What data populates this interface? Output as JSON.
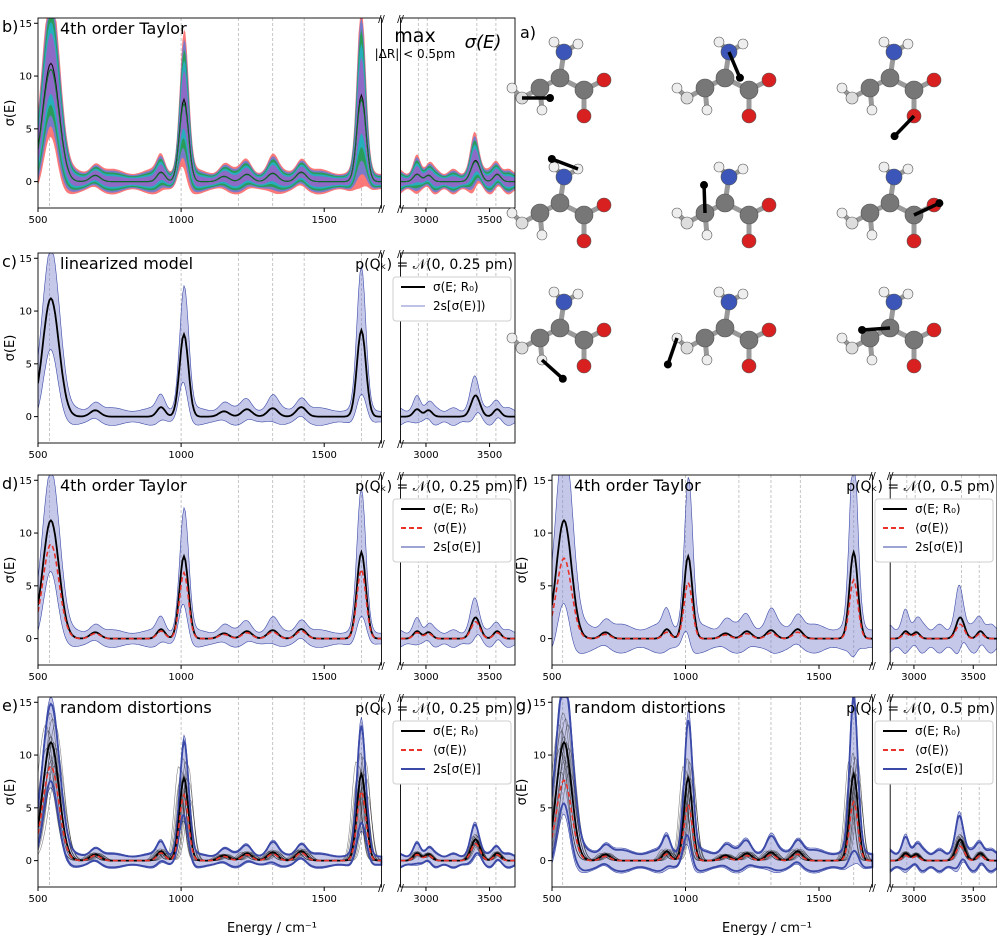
{
  "figure": {
    "xlabel": "Energy / cm⁻¹",
    "ylabel": "σ(E)"
  },
  "chart_data": [
    {
      "id": "b",
      "label": "b)",
      "type": "area",
      "title": "4th order Taylor",
      "annotation": {
        "main": "max",
        "sub": "|ΔR| < 0.5pm",
        "rhs": "σ(E)"
      },
      "x_left": [
        500,
        1700
      ],
      "x_right": [
        2800,
        3700
      ],
      "ylim": [
        -2.5,
        15.5
      ],
      "xticks": [
        500,
        1000,
        1500,
        3000,
        3500
      ],
      "yticks": [
        0,
        5,
        10,
        15
      ],
      "gridlines": [
        540,
        1000,
        1200,
        1320,
        1430,
        1630,
        2940,
        3010,
        3400,
        3550
      ],
      "bands": [
        {
          "center": 540,
          "height": 14.5,
          "width": 60
        },
        {
          "center": 1010,
          "height": 9.5,
          "width": 40
        },
        {
          "center": 1630,
          "height": 10.5,
          "width": 40
        },
        {
          "center": 3390,
          "height": 4.0,
          "width": 100
        }
      ],
      "colors": [
        "#fb6a6a",
        "#6a7bd1",
        "#20a050",
        "#26b0c8",
        "#9a63c8"
      ]
    },
    {
      "id": "c",
      "label": "c)",
      "type": "line",
      "title": "linearized model",
      "dist": "p(Qₖ) = 𝒩(0, 0.25 pm)",
      "x_left": [
        500,
        1700
      ],
      "x_right": [
        2800,
        3700
      ],
      "ylim": [
        -2.5,
        15.5
      ],
      "xticks": [
        500,
        1000,
        1500,
        3000,
        3500
      ],
      "yticks": [
        0,
        5,
        10,
        15
      ],
      "legend": [
        "σ(E; R₀)",
        "2s[σ(E)])"
      ],
      "band_scale": 1.35
    },
    {
      "id": "d",
      "label": "d)",
      "type": "line",
      "title": "4th order Taylor",
      "dist": "p(Qₖ) = 𝒩(0, 0.25 pm)",
      "x_left": [
        500,
        1700
      ],
      "x_right": [
        2800,
        3700
      ],
      "ylim": [
        -2.5,
        15.5
      ],
      "xticks": [
        500,
        1000,
        1500,
        3000,
        3500
      ],
      "yticks": [
        0,
        5,
        10,
        15
      ],
      "legend": [
        "σ(E; R₀)",
        "⟨σ(E)⟩",
        "2s[σ(E)]"
      ],
      "band_scale": 1.35
    },
    {
      "id": "f",
      "label": "f)",
      "type": "line",
      "title": "4th order Taylor",
      "dist": "p(Qₖ) = 𝒩(0, 0.5 pm)",
      "x_left": [
        500,
        1700
      ],
      "x_right": [
        2800,
        3700
      ],
      "ylim": [
        -2.5,
        15.5
      ],
      "xticks": [
        500,
        1000,
        1500,
        3000,
        3500
      ],
      "yticks": [
        0,
        5,
        10,
        15
      ],
      "legend": [
        "σ(E; R₀)",
        "⟨σ(E)⟩",
        "2s[σ(E)]"
      ],
      "band_scale": 2.2
    },
    {
      "id": "e",
      "label": "e)",
      "type": "line",
      "title": "random distortions",
      "dist": "p(Qₖ) = 𝒩(0, 0.25 pm)",
      "x_left": [
        500,
        1700
      ],
      "x_right": [
        2800,
        3700
      ],
      "ylim": [
        -2.5,
        15.5
      ],
      "xticks": [
        500,
        1000,
        1500,
        3000,
        3500
      ],
      "yticks": [
        0,
        5,
        10,
        15
      ],
      "legend": [
        "σ(E; R₀)",
        "⟨σ(E)⟩",
        "2s[σ(E)]"
      ],
      "band_scale": 1.2
    },
    {
      "id": "g",
      "label": "g)",
      "type": "line",
      "title": "random distortions",
      "dist": "p(Qₖ) = 𝒩(0, 0.5 pm)",
      "x_left": [
        500,
        1700
      ],
      "x_right": [
        2800,
        3700
      ],
      "ylim": [
        -2.5,
        15.5
      ],
      "xticks": [
        500,
        1000,
        1500,
        3000,
        3500
      ],
      "yticks": [
        0,
        5,
        10,
        15
      ],
      "legend": [
        "σ(E; R₀)",
        "⟨σ(E)⟩",
        "2s[σ(E)]"
      ],
      "band_scale": 1.9
    }
  ],
  "spectrum": {
    "reference_peaks": [
      {
        "center": 545,
        "height": 11.2,
        "width": 40
      },
      {
        "center": 700,
        "height": 0.6,
        "width": 25
      },
      {
        "center": 930,
        "height": 0.9,
        "width": 20
      },
      {
        "center": 1010,
        "height": 7.8,
        "width": 22
      },
      {
        "center": 1150,
        "height": 0.5,
        "width": 25
      },
      {
        "center": 1230,
        "height": 0.7,
        "width": 25
      },
      {
        "center": 1320,
        "height": 0.8,
        "width": 25
      },
      {
        "center": 1420,
        "height": 0.9,
        "width": 25
      },
      {
        "center": 1630,
        "height": 8.2,
        "width": 22
      },
      {
        "center": 2930,
        "height": 0.7,
        "width": 40
      },
      {
        "center": 3020,
        "height": 0.6,
        "width": 40
      },
      {
        "center": 3390,
        "height": 2.0,
        "width": 50
      },
      {
        "center": 3560,
        "height": 0.7,
        "width": 40
      }
    ],
    "colors": {
      "reference": "#000000",
      "mean": "#e8322a",
      "band": "#7f86cf",
      "band_edge": "#3b4aa8",
      "grid": "#b8b8b8"
    }
  },
  "panel_a": {
    "label": "a)"
  }
}
